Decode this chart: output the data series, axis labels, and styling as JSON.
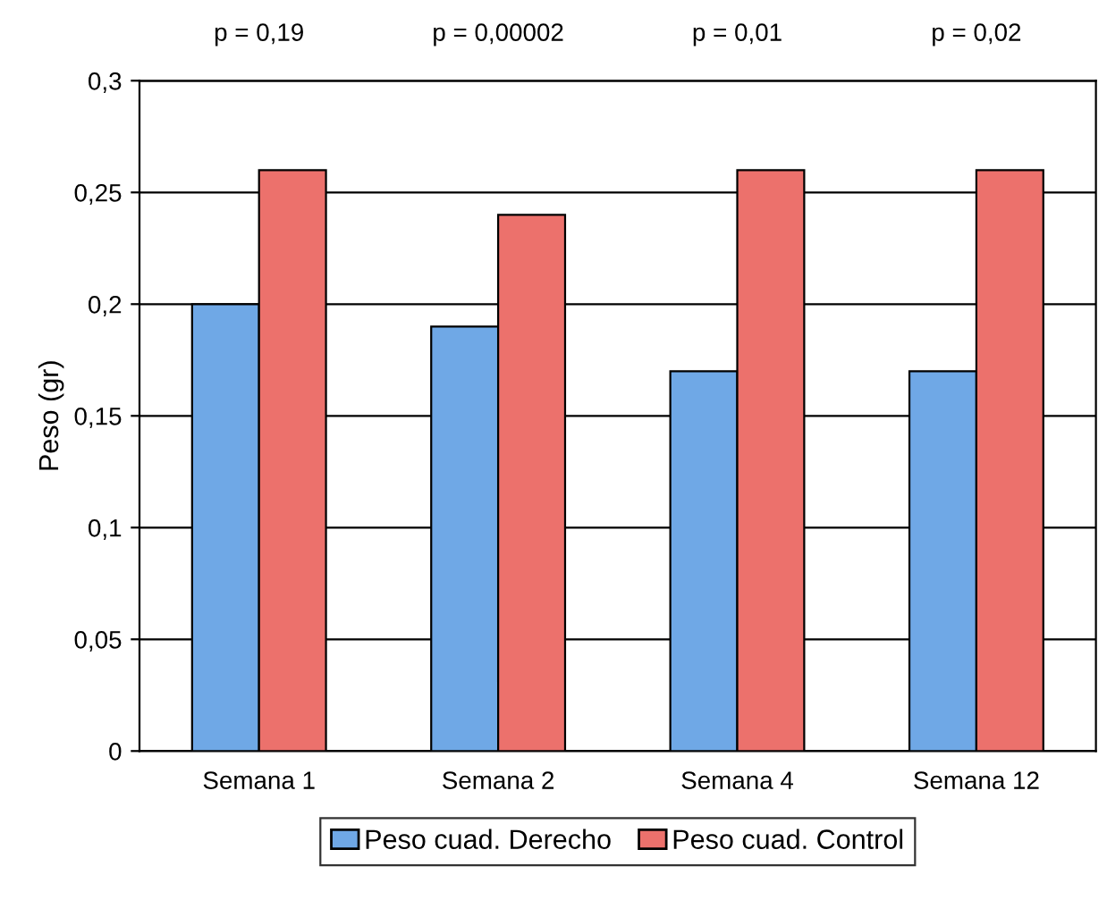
{
  "chart_data": {
    "type": "bar",
    "ylabel": "Peso (gr)",
    "categories": [
      "Semana 1",
      "Semana 2",
      "Semana 4",
      "Semana 12"
    ],
    "series": [
      {
        "name": "Peso cuad. Derecho",
        "color": "#6fa8e6",
        "values": [
          0.2,
          0.19,
          0.17,
          0.17
        ]
      },
      {
        "name": "Peso cuad. Control",
        "color": "#ec716c",
        "values": [
          0.26,
          0.24,
          0.26,
          0.26
        ]
      }
    ],
    "ylim": [
      0,
      0.3
    ],
    "yticks": [
      {
        "value": 0,
        "label": "0"
      },
      {
        "value": 0.05,
        "label": "0,05"
      },
      {
        "value": 0.1,
        "label": "0,1"
      },
      {
        "value": 0.15,
        "label": "0,15"
      },
      {
        "value": 0.2,
        "label": "0,2"
      },
      {
        "value": 0.25,
        "label": "0,25"
      },
      {
        "value": 0.3,
        "label": "0,3"
      }
    ],
    "grid": "y",
    "legend": "bottom",
    "annotations": [
      "p = 0,19",
      "p = 0,00002",
      "p = 0,01",
      "p = 0,02"
    ]
  }
}
